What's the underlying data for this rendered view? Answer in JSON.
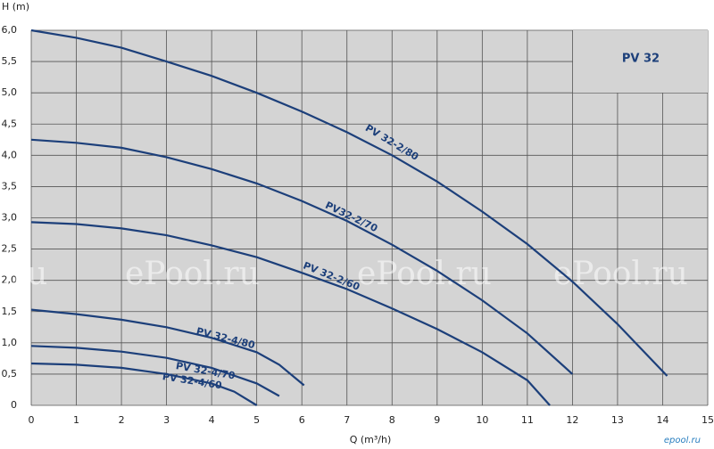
{
  "chart_data": {
    "type": "line",
    "title": "PV 32",
    "y_label": "H (m)",
    "x_label": "Q (m³/h)",
    "watermarks": [
      "l.ru",
      "ePool.ru",
      "ePool.ru",
      "ePool.ru"
    ],
    "logo": "epool.ru",
    "xlim": [
      0,
      15
    ],
    "ylim": [
      0,
      6
    ],
    "xticks": [
      0,
      1,
      2,
      3,
      4,
      5,
      6,
      7,
      8,
      9,
      10,
      11,
      12,
      13,
      14,
      15
    ],
    "yticks": [
      0,
      {
        "value": 0.5,
        "label": "0,5"
      },
      {
        "value": 1,
        "label": "1,0"
      },
      {
        "value": 1.5,
        "label": "1,5"
      },
      {
        "value": 2,
        "label": "2,0"
      },
      {
        "value": 2.5,
        "label": "2,5"
      },
      {
        "value": 3,
        "label": "3,0"
      },
      {
        "value": 3.5,
        "label": "3,5"
      },
      {
        "value": 4,
        "label": "4,0"
      },
      {
        "value": 4.5,
        "label": "4,5"
      },
      {
        "value": 5,
        "label": "5,0"
      },
      {
        "value": 5.5,
        "label": "5,5"
      },
      {
        "value": 6,
        "label": "6,0"
      }
    ],
    "grid": true,
    "color": "#1c3f7a",
    "series": [
      {
        "name": "PV 32-2/80",
        "x": [
          0,
          1,
          2,
          3,
          4,
          5,
          6,
          7,
          8,
          9,
          10,
          11,
          12,
          13,
          14.1
        ],
        "values": [
          6.0,
          5.88,
          5.72,
          5.5,
          5.27,
          5.0,
          4.7,
          4.37,
          4.0,
          3.58,
          3.1,
          2.58,
          1.98,
          1.3,
          0.47
        ]
      },
      {
        "name": "PV32-2/70",
        "x": [
          0,
          1,
          2,
          3,
          4,
          5,
          6,
          7,
          8,
          9,
          10,
          11,
          12
        ],
        "values": [
          4.25,
          4.2,
          4.12,
          3.97,
          3.78,
          3.55,
          3.27,
          2.95,
          2.57,
          2.15,
          1.68,
          1.15,
          0.5
        ]
      },
      {
        "name": "PV 32-2/60",
        "x": [
          0,
          1,
          2,
          3,
          4,
          5,
          6,
          7,
          8,
          9,
          10,
          11,
          11.5
        ],
        "values": [
          2.93,
          2.9,
          2.83,
          2.72,
          2.56,
          2.37,
          2.12,
          1.86,
          1.55,
          1.22,
          0.85,
          0.4,
          0
        ]
      },
      {
        "name": "PV 32-4/80",
        "x": [
          0,
          1,
          2,
          3,
          4,
          5,
          5.5,
          6.05
        ],
        "values": [
          1.53,
          1.46,
          1.37,
          1.25,
          1.08,
          0.85,
          0.65,
          0.32
        ]
      },
      {
        "name": "PV 32-4/70",
        "x": [
          0,
          1,
          2,
          3,
          4,
          5,
          5.5
        ],
        "values": [
          0.95,
          0.92,
          0.86,
          0.76,
          0.6,
          0.35,
          0.15
        ]
      },
      {
        "name": "PV 32-4/60",
        "x": [
          0,
          1,
          2,
          3,
          4,
          4.5,
          5
        ],
        "values": [
          0.67,
          0.65,
          0.6,
          0.5,
          0.35,
          0.22,
          0
        ]
      }
    ]
  }
}
